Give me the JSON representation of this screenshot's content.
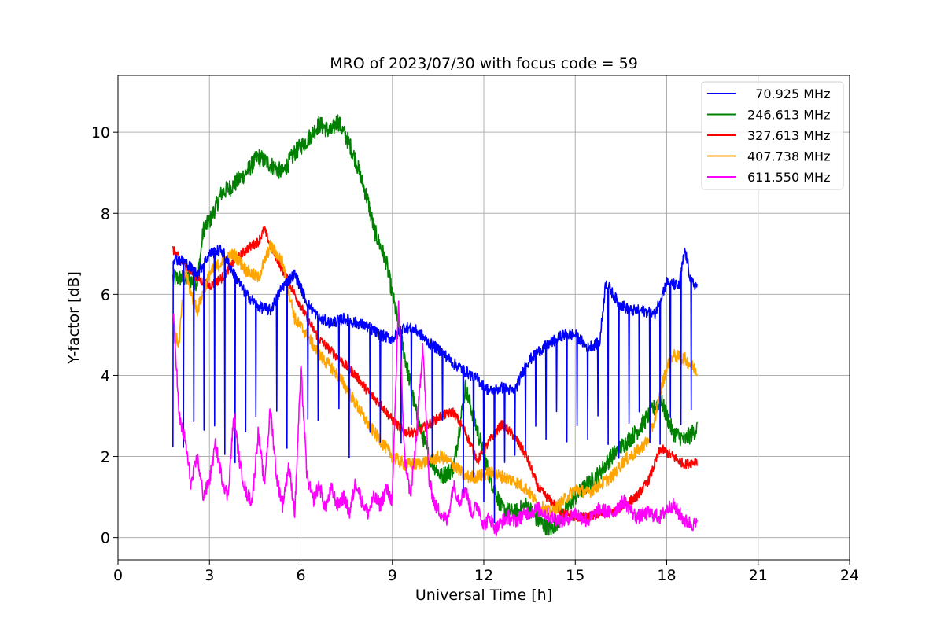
{
  "chart_data": {
    "type": "line",
    "title": "MRO of 2023/07/30 with focus code = 59",
    "xlabel": "Universal Time [h]",
    "ylabel": "Y-factor [dB]",
    "xlim": [
      0,
      24
    ],
    "ylim": [
      -0.55,
      11.4
    ],
    "xticks": [
      0,
      3,
      6,
      9,
      12,
      15,
      18,
      21,
      24
    ],
    "yticks": [
      0,
      2,
      4,
      6,
      8,
      10
    ],
    "grid": true,
    "legend_position": "top-right",
    "series": [
      {
        "name": "  70.925 MHz",
        "color": "#0000ff",
        "x": [
          1.8,
          2.2,
          2.6,
          3.0,
          3.4,
          3.8,
          4.2,
          4.6,
          5.0,
          5.4,
          5.8,
          6.2,
          6.6,
          7.0,
          7.4,
          7.8,
          8.2,
          8.6,
          9.0,
          9.4,
          9.8,
          10.2,
          10.6,
          11.0,
          11.4,
          11.8,
          12.2,
          12.6,
          13.0,
          13.4,
          13.8,
          14.2,
          14.6,
          15.0,
          15.4,
          15.8,
          16.0,
          16.4,
          16.8,
          17.2,
          17.6,
          18.0,
          18.4,
          18.6,
          18.8,
          19.0
        ],
        "y": [
          6.9,
          6.8,
          6.5,
          7.0,
          7.1,
          6.5,
          6.0,
          5.7,
          5.6,
          6.2,
          6.5,
          5.8,
          5.4,
          5.3,
          5.4,
          5.3,
          5.2,
          5.0,
          4.9,
          5.2,
          5.1,
          4.8,
          4.6,
          4.3,
          4.1,
          3.9,
          3.6,
          3.7,
          3.6,
          4.3,
          4.6,
          4.8,
          5.0,
          5.0,
          4.7,
          4.8,
          6.3,
          5.8,
          5.6,
          5.6,
          5.5,
          6.3,
          6.2,
          7.1,
          6.3,
          6.2
        ],
        "dip_period_h": 0.34,
        "dip_floor": [
          1.8,
          3.2
        ]
      },
      {
        "name": "246.613 MHz",
        "color": "#008000",
        "x": [
          1.8,
          2.2,
          2.6,
          2.8,
          3.0,
          3.4,
          3.8,
          4.2,
          4.6,
          5.0,
          5.4,
          5.8,
          6.2,
          6.6,
          7.0,
          7.2,
          7.4,
          7.6,
          7.8,
          8.0,
          8.2,
          8.4,
          8.8,
          9.0,
          9.4,
          9.8,
          10.2,
          10.6,
          11.0,
          11.4,
          11.8,
          12.2,
          12.6,
          13.0,
          13.4,
          13.8,
          14.2,
          14.6,
          15.0,
          15.4,
          15.8,
          16.2,
          16.6,
          17.0,
          17.4,
          17.8,
          18.2,
          18.6,
          19.0
        ],
        "y": [
          6.4,
          6.4,
          6.3,
          7.6,
          7.8,
          8.5,
          8.7,
          9.0,
          9.4,
          9.2,
          9.0,
          9.5,
          9.8,
          10.2,
          10.0,
          10.3,
          10.0,
          9.7,
          9.3,
          8.8,
          8.3,
          7.6,
          6.8,
          6.0,
          4.5,
          3.0,
          2.0,
          1.5,
          1.7,
          3.7,
          2.6,
          1.5,
          0.7,
          0.6,
          0.8,
          0.4,
          0.2,
          0.6,
          1.0,
          1.3,
          1.6,
          2.0,
          2.3,
          2.6,
          3.0,
          3.4,
          2.6,
          2.4,
          2.7
        ]
      },
      {
        "name": "327.613 MHz",
        "color": "#ff0000",
        "x": [
          1.8,
          2.2,
          2.6,
          3.0,
          3.4,
          3.8,
          4.2,
          4.6,
          4.8,
          5.0,
          5.4,
          5.8,
          6.2,
          6.6,
          7.0,
          7.4,
          7.8,
          8.2,
          8.6,
          9.0,
          9.4,
          9.8,
          10.2,
          10.6,
          11.0,
          11.4,
          11.8,
          12.2,
          12.6,
          13.0,
          13.4,
          13.8,
          14.2,
          14.6,
          15.0,
          15.4,
          15.8,
          16.2,
          16.6,
          17.0,
          17.4,
          17.8,
          18.2,
          18.6,
          19.0
        ],
        "y": [
          7.1,
          6.7,
          6.4,
          6.2,
          6.4,
          6.8,
          7.1,
          7.3,
          7.6,
          7.2,
          6.6,
          6.0,
          5.4,
          4.9,
          4.6,
          4.3,
          4.0,
          3.6,
          3.3,
          2.9,
          2.6,
          2.6,
          2.8,
          3.0,
          3.1,
          2.6,
          1.9,
          2.4,
          2.8,
          2.5,
          2.0,
          1.2,
          0.9,
          0.6,
          0.5,
          0.5,
          0.6,
          0.6,
          0.8,
          1.0,
          1.4,
          2.2,
          2.0,
          1.8,
          1.9
        ]
      },
      {
        "name": "407.738 MHz",
        "color": "#ffa500",
        "x": [
          1.8,
          2.0,
          2.2,
          2.4,
          2.6,
          3.0,
          3.4,
          3.8,
          4.2,
          4.6,
          5.0,
          5.4,
          5.8,
          6.2,
          6.6,
          7.0,
          7.4,
          7.8,
          8.2,
          8.6,
          9.0,
          9.4,
          9.8,
          10.2,
          10.6,
          11.0,
          11.4,
          11.8,
          12.2,
          12.6,
          13.0,
          13.4,
          13.8,
          14.2,
          14.6,
          15.0,
          15.4,
          15.8,
          16.2,
          16.6,
          17.0,
          17.4,
          17.6,
          17.8,
          18.0,
          18.2,
          18.6,
          19.0
        ],
        "y": [
          5.0,
          4.8,
          6.6,
          6.0,
          5.6,
          6.5,
          6.8,
          7.0,
          6.6,
          6.4,
          7.2,
          6.8,
          5.4,
          5.0,
          4.5,
          4.2,
          3.8,
          3.3,
          2.8,
          2.4,
          2.0,
          1.8,
          1.8,
          1.9,
          2.0,
          1.8,
          1.5,
          1.5,
          1.6,
          1.5,
          1.4,
          1.2,
          0.8,
          0.6,
          0.9,
          1.2,
          1.1,
          1.3,
          1.5,
          1.9,
          2.1,
          2.4,
          2.9,
          3.6,
          4.2,
          4.5,
          4.4,
          4.1
        ]
      },
      {
        "name": "611.550 MHz",
        "color": "#ff00ff",
        "x": [
          1.8,
          1.9,
          2.0,
          2.2,
          2.4,
          2.6,
          2.8,
          3.0,
          3.2,
          3.4,
          3.6,
          3.8,
          4.0,
          4.2,
          4.4,
          4.6,
          4.8,
          5.0,
          5.2,
          5.4,
          5.6,
          5.8,
          6.0,
          6.2,
          6.4,
          6.6,
          6.8,
          7.0,
          7.2,
          7.4,
          7.6,
          7.8,
          8.0,
          8.2,
          8.4,
          8.6,
          8.8,
          9.0,
          9.2,
          9.4,
          9.6,
          9.8,
          10.0,
          10.2,
          10.4,
          10.6,
          10.8,
          11.0,
          11.2,
          11.4,
          11.6,
          11.8,
          12.0,
          12.2,
          12.4,
          12.6,
          12.8,
          13.0,
          13.4,
          13.8,
          14.2,
          14.6,
          15.0,
          15.4,
          15.8,
          16.2,
          16.6,
          17.0,
          17.4,
          17.8,
          18.0,
          18.2,
          18.6,
          19.0
        ],
        "y": [
          5.6,
          4.5,
          3.0,
          2.4,
          1.3,
          2.0,
          1.0,
          1.4,
          2.3,
          1.5,
          1.0,
          3.0,
          1.8,
          1.1,
          0.9,
          2.6,
          1.3,
          3.2,
          1.5,
          0.8,
          1.8,
          0.6,
          4.2,
          1.5,
          0.9,
          1.3,
          0.7,
          1.2,
          0.8,
          1.0,
          0.6,
          1.4,
          0.9,
          0.6,
          1.0,
          0.8,
          1.2,
          0.9,
          5.9,
          2.0,
          1.0,
          2.6,
          4.8,
          1.4,
          0.8,
          0.6,
          0.4,
          1.3,
          0.9,
          1.2,
          0.6,
          0.8,
          0.3,
          0.5,
          0.2,
          0.4,
          0.5,
          0.4,
          0.6,
          0.7,
          0.5,
          0.4,
          0.6,
          0.4,
          0.7,
          0.6,
          0.9,
          0.5,
          0.6,
          0.5,
          0.7,
          0.8,
          0.4,
          0.3
        ]
      }
    ]
  }
}
